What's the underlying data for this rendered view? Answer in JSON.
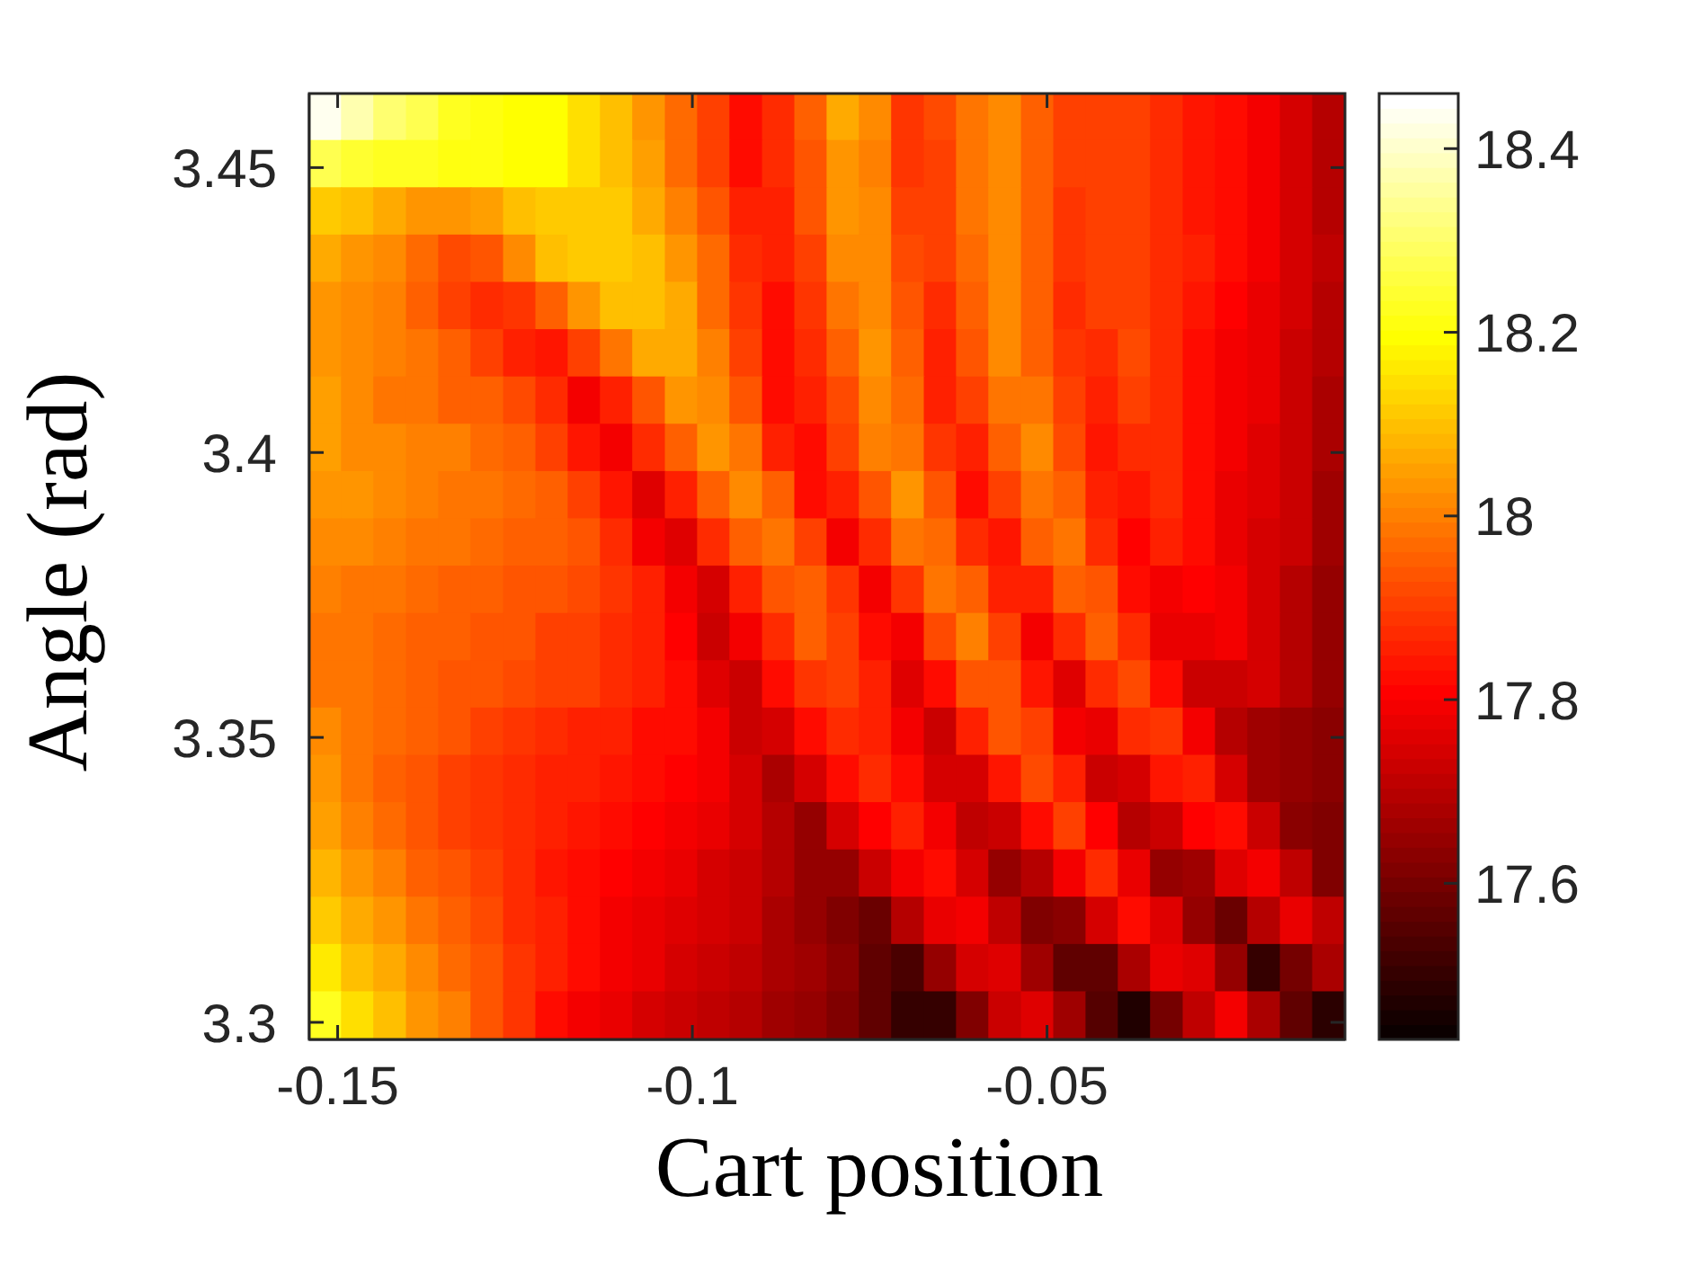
{
  "chart_data": {
    "type": "heatmap",
    "xlabel": "Cart position",
    "ylabel": "Angle (rad)",
    "x": [
      -0.1517,
      -0.1472,
      -0.1426,
      -0.138,
      -0.1335,
      -0.1289,
      -0.1243,
      -0.1198,
      -0.1152,
      -0.1107,
      -0.1061,
      -0.1015,
      -0.097,
      -0.0924,
      -0.0878,
      -0.0833,
      -0.0787,
      -0.0742,
      -0.0696,
      -0.065,
      -0.0605,
      -0.0559,
      -0.0513,
      -0.0468,
      -0.0422,
      -0.0377,
      -0.0331,
      -0.0285,
      -0.024,
      -0.0194,
      -0.0148,
      -0.0103
    ],
    "y": [
      3.4589,
      3.4506,
      3.4423,
      3.434,
      3.4257,
      3.4174,
      3.4091,
      3.4008,
      3.3925,
      3.3842,
      3.3759,
      3.3676,
      3.3593,
      3.351,
      3.3427,
      3.3344,
      3.3261,
      3.3178,
      3.3095,
      3.3012
    ],
    "xlim": [
      -0.154,
      -0.008
    ],
    "ylim": [
      3.297,
      3.463
    ],
    "xticks": [
      -0.15,
      -0.1,
      -0.05
    ],
    "yticks": [
      3.3,
      3.35,
      3.4,
      3.45
    ],
    "clim": [
      17.43,
      18.46
    ],
    "cticks": [
      17.6,
      17.8,
      18,
      18.2,
      18.4
    ],
    "cells": [
      [
        18.43,
        18.37,
        18.31,
        18.27,
        18.23,
        18.21,
        18.2,
        18.19,
        18.15,
        18.1,
        18.04,
        17.97,
        17.9,
        17.83,
        17.87,
        17.95,
        18.07,
        18.01,
        17.89,
        17.92,
        17.99,
        18.01,
        17.95,
        17.9,
        17.91,
        17.9,
        17.87,
        17.84,
        17.82,
        17.79,
        17.75,
        17.7
      ],
      [
        18.28,
        18.24,
        18.23,
        18.22,
        18.21,
        18.21,
        18.2,
        18.19,
        18.15,
        18.1,
        18.05,
        17.97,
        17.9,
        17.83,
        17.87,
        17.94,
        18.04,
        18.0,
        17.89,
        17.91,
        17.99,
        18.01,
        17.95,
        17.9,
        17.91,
        17.9,
        17.87,
        17.84,
        17.82,
        17.79,
        17.75,
        17.7
      ],
      [
        18.12,
        18.09,
        18.06,
        18.03,
        18.03,
        18.05,
        18.1,
        18.12,
        18.12,
        18.11,
        18.06,
        18.0,
        17.93,
        17.86,
        17.86,
        17.93,
        18.03,
        18.01,
        17.91,
        17.9,
        17.98,
        18.01,
        17.95,
        17.89,
        17.9,
        17.9,
        17.87,
        17.84,
        17.82,
        17.79,
        17.75,
        17.7
      ],
      [
        18.07,
        18.04,
        18.01,
        17.97,
        17.92,
        17.94,
        18.01,
        18.09,
        18.11,
        18.12,
        18.09,
        18.04,
        17.97,
        17.88,
        17.85,
        17.9,
        18.01,
        18.01,
        17.92,
        17.9,
        17.97,
        18.02,
        17.96,
        17.89,
        17.9,
        17.9,
        17.88,
        17.85,
        17.82,
        17.79,
        17.75,
        17.71
      ],
      [
        18.04,
        18.02,
        18.0,
        17.96,
        17.91,
        17.87,
        17.89,
        17.96,
        18.04,
        18.1,
        18.1,
        18.06,
        17.97,
        17.89,
        17.83,
        17.89,
        17.99,
        18.02,
        17.93,
        17.88,
        17.96,
        18.02,
        17.95,
        17.88,
        17.9,
        17.91,
        17.87,
        17.84,
        17.81,
        17.78,
        17.74,
        17.69
      ],
      [
        18.04,
        18.02,
        18.0,
        17.98,
        17.96,
        17.91,
        17.86,
        17.84,
        17.9,
        17.99,
        18.07,
        18.06,
        18.0,
        17.91,
        17.82,
        17.87,
        17.96,
        18.04,
        17.96,
        17.85,
        17.94,
        18.01,
        17.96,
        17.89,
        17.88,
        17.92,
        17.88,
        17.83,
        17.8,
        17.78,
        17.73,
        17.69
      ],
      [
        18.05,
        18.02,
        17.99,
        17.98,
        17.96,
        17.95,
        17.92,
        17.87,
        17.8,
        17.86,
        17.94,
        18.04,
        18.01,
        17.94,
        17.83,
        17.85,
        17.92,
        18.02,
        17.97,
        17.86,
        17.91,
        17.99,
        17.98,
        17.9,
        17.86,
        17.9,
        17.87,
        17.83,
        17.8,
        17.77,
        17.73,
        17.68
      ],
      [
        18.05,
        18.02,
        18.01,
        18.0,
        18.0,
        17.97,
        17.95,
        17.9,
        17.84,
        17.79,
        17.88,
        17.96,
        18.03,
        17.98,
        17.86,
        17.83,
        17.9,
        18.0,
        17.99,
        17.89,
        17.86,
        17.96,
        18.01,
        17.92,
        17.84,
        17.88,
        17.87,
        17.82,
        17.79,
        17.76,
        17.73,
        17.68
      ],
      [
        18.04,
        18.03,
        18.02,
        18.0,
        17.99,
        17.98,
        17.97,
        17.95,
        17.9,
        17.84,
        17.76,
        17.86,
        17.96,
        18.01,
        17.95,
        17.82,
        17.85,
        17.94,
        18.03,
        17.94,
        17.83,
        17.91,
        17.99,
        17.95,
        17.86,
        17.84,
        17.88,
        17.83,
        17.78,
        17.76,
        17.72,
        17.67
      ],
      [
        18.02,
        18.01,
        18.0,
        17.99,
        17.98,
        17.97,
        17.96,
        17.96,
        17.93,
        17.87,
        17.8,
        17.76,
        17.87,
        17.96,
        17.98,
        17.9,
        17.79,
        17.88,
        17.99,
        17.97,
        17.87,
        17.84,
        17.95,
        17.98,
        17.88,
        17.81,
        17.85,
        17.83,
        17.78,
        17.75,
        17.72,
        17.66
      ],
      [
        18.0,
        17.99,
        17.98,
        17.97,
        17.96,
        17.95,
        17.94,
        17.93,
        17.92,
        17.89,
        17.85,
        17.79,
        17.75,
        17.86,
        17.93,
        17.95,
        17.89,
        17.79,
        17.89,
        17.99,
        17.96,
        17.85,
        17.85,
        17.95,
        17.94,
        17.83,
        17.79,
        17.81,
        17.79,
        17.74,
        17.7,
        17.65
      ],
      [
        17.99,
        17.98,
        17.97,
        17.96,
        17.95,
        17.94,
        17.93,
        17.91,
        17.9,
        17.88,
        17.86,
        17.81,
        17.73,
        17.8,
        17.88,
        17.95,
        17.9,
        17.82,
        17.8,
        17.92,
        18.0,
        17.9,
        17.79,
        17.87,
        17.95,
        17.88,
        17.77,
        17.77,
        17.8,
        17.74,
        17.69,
        17.64
      ],
      [
        17.99,
        17.98,
        17.97,
        17.96,
        17.94,
        17.93,
        17.92,
        17.91,
        17.9,
        17.88,
        17.85,
        17.82,
        17.76,
        17.73,
        17.82,
        17.89,
        17.91,
        17.86,
        17.76,
        17.83,
        17.93,
        17.94,
        17.84,
        17.76,
        17.87,
        17.92,
        17.83,
        17.72,
        17.73,
        17.74,
        17.69,
        17.64
      ],
      [
        18.01,
        17.99,
        17.97,
        17.95,
        17.93,
        17.91,
        17.89,
        17.87,
        17.86,
        17.85,
        17.83,
        17.82,
        17.79,
        17.72,
        17.75,
        17.83,
        17.88,
        17.86,
        17.8,
        17.73,
        17.85,
        17.93,
        17.9,
        17.79,
        17.77,
        17.87,
        17.89,
        17.79,
        17.7,
        17.67,
        17.65,
        17.63
      ],
      [
        18.03,
        17.99,
        17.96,
        17.94,
        17.91,
        17.89,
        17.87,
        17.86,
        17.85,
        17.84,
        17.82,
        17.81,
        17.8,
        17.74,
        17.68,
        17.74,
        17.82,
        17.88,
        17.82,
        17.75,
        17.74,
        17.84,
        17.92,
        17.85,
        17.73,
        17.75,
        17.84,
        17.85,
        17.75,
        17.66,
        17.64,
        17.63
      ],
      [
        18.05,
        18.0,
        17.97,
        17.94,
        17.91,
        17.89,
        17.87,
        17.85,
        17.84,
        17.82,
        17.81,
        17.79,
        17.78,
        17.74,
        17.7,
        17.65,
        17.74,
        17.81,
        17.85,
        17.79,
        17.71,
        17.72,
        17.82,
        17.9,
        17.81,
        17.69,
        17.72,
        17.81,
        17.82,
        17.73,
        17.63,
        17.62
      ],
      [
        18.08,
        18.03,
        18.0,
        17.96,
        17.93,
        17.9,
        17.87,
        17.84,
        17.83,
        17.81,
        17.79,
        17.77,
        17.75,
        17.73,
        17.69,
        17.65,
        17.64,
        17.73,
        17.8,
        17.82,
        17.75,
        17.65,
        17.7,
        17.8,
        17.87,
        17.78,
        17.65,
        17.67,
        17.76,
        17.8,
        17.71,
        17.62
      ],
      [
        18.12,
        18.06,
        18.03,
        17.99,
        17.95,
        17.92,
        17.88,
        17.85,
        17.83,
        17.8,
        17.78,
        17.76,
        17.74,
        17.72,
        17.68,
        17.65,
        17.61,
        17.59,
        17.69,
        17.77,
        17.79,
        17.71,
        17.61,
        17.63,
        17.74,
        17.83,
        17.76,
        17.65,
        17.58,
        17.7,
        17.78,
        17.71
      ],
      [
        18.17,
        18.1,
        18.06,
        18.02,
        17.97,
        17.93,
        17.89,
        17.86,
        17.82,
        17.79,
        17.77,
        17.75,
        17.73,
        17.71,
        17.68,
        17.66,
        17.63,
        17.57,
        17.53,
        17.65,
        17.75,
        17.76,
        17.67,
        17.56,
        17.56,
        17.68,
        17.78,
        17.76,
        17.64,
        17.51,
        17.6,
        17.68
      ],
      [
        18.22,
        18.15,
        18.09,
        18.04,
        18.0,
        17.94,
        17.89,
        17.83,
        17.8,
        17.77,
        17.74,
        17.73,
        17.71,
        17.69,
        17.67,
        17.65,
        17.62,
        17.57,
        17.51,
        17.5,
        17.62,
        17.72,
        17.76,
        17.66,
        17.55,
        17.47,
        17.6,
        17.71,
        17.79,
        17.68,
        17.56,
        17.48
      ]
    ]
  }
}
